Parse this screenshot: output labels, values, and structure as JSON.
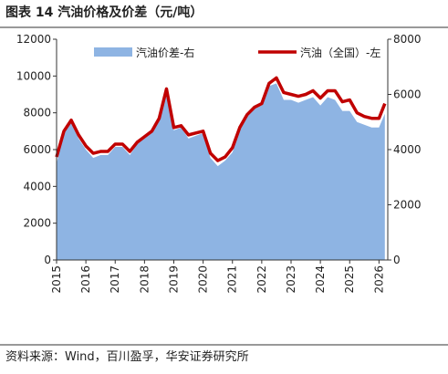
{
  "title": "图表 14 汽油价格及价差（元/吨）",
  "source": "资料来源：Wind，百川盈孚，华安证券研究所",
  "chart_data": {
    "type": "line",
    "x": [
      2015,
      2015.25,
      2015.5,
      2015.75,
      2016,
      2016.25,
      2016.5,
      2016.75,
      2017,
      2017.25,
      2017.5,
      2017.75,
      2018,
      2018.25,
      2018.5,
      2018.75,
      2019,
      2019.25,
      2019.5,
      2019.75,
      2020,
      2020.25,
      2020.5,
      2020.75,
      2021,
      2021.25,
      2021.5,
      2021.75,
      2022,
      2022.25,
      2022.5,
      2022.75,
      2023,
      2023.25,
      2023.5,
      2023.75,
      2024,
      2024.25,
      2024.5,
      2024.75,
      2025,
      2025.25,
      2025.5,
      2025.75,
      2026,
      2026.2
    ],
    "series": [
      {
        "name": "汽油价差-右",
        "color": "#8eb4e3",
        "axis": "y2",
        "kind": "area",
        "values": [
          3500,
          4600,
          5000,
          4400,
          4000,
          3700,
          3800,
          3800,
          4100,
          4100,
          3800,
          4200,
          4400,
          4600,
          5100,
          6200,
          4700,
          4800,
          4400,
          4500,
          4600,
          3700,
          3400,
          3600,
          3900,
          4700,
          5200,
          5500,
          5600,
          6300,
          6400,
          5800,
          5800,
          5700,
          5800,
          5900,
          5600,
          5900,
          5800,
          5400,
          5400,
          5000,
          4900,
          4800,
          4800,
          5300
        ]
      },
      {
        "name": "汽油（全国）-左",
        "color": "#c00000",
        "kind": "line",
        "values": [
          5600,
          7000,
          7600,
          6800,
          6200,
          5800,
          5900,
          5900,
          6300,
          6300,
          5900,
          6400,
          6700,
          7000,
          7700,
          9300,
          7200,
          7300,
          6800,
          6900,
          7000,
          5800,
          5400,
          5600,
          6100,
          7200,
          7900,
          8300,
          8500,
          9600,
          9900,
          9100,
          9000,
          8900,
          9000,
          9200,
          8800,
          9200,
          9200,
          8600,
          8700,
          8000,
          7800,
          7700,
          7700,
          8500
        ]
      }
    ],
    "xlim": [
      2015,
      2026.3
    ],
    "xticks": [
      2015,
      2016,
      2017,
      2018,
      2019,
      2020,
      2021,
      2022,
      2023,
      2024,
      2025,
      2026
    ],
    "ylim": [
      0,
      12000
    ],
    "yticks": [
      0,
      2000,
      4000,
      6000,
      8000,
      10000,
      12000
    ],
    "y2lim": [
      0,
      8000
    ],
    "y2ticks": [
      0,
      2000,
      4000,
      6000,
      8000
    ],
    "legend": "top"
  }
}
